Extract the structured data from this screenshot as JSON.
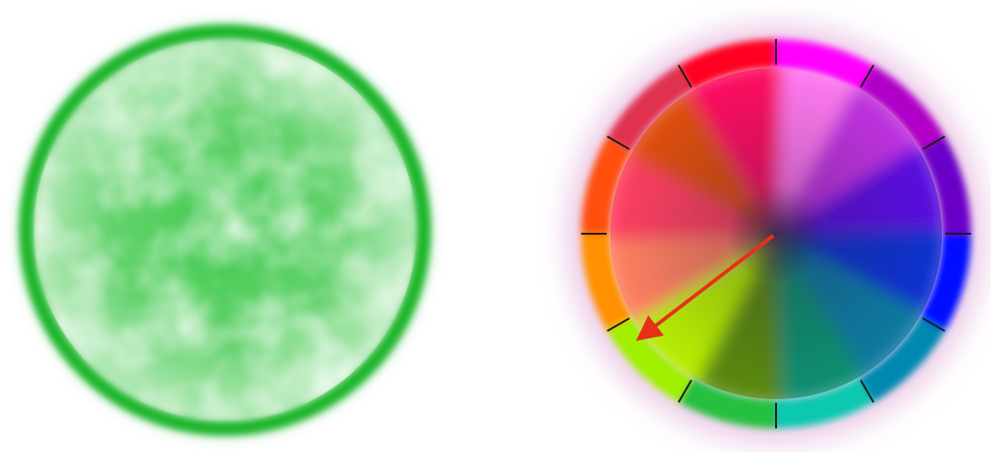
{
  "left_circle": {
    "fill_color": "#3cc84a",
    "ring_color": "#1fb52c"
  },
  "color_wheel": {
    "outer_ring_colors": [
      "#ff00ff",
      "#b000c8",
      "#6a00c8",
      "#0010ff",
      "#0088b0",
      "#10c8b0",
      "#28c040",
      "#a0f000",
      "#ff9000",
      "#ff5010",
      "#e03050",
      "#ff0020"
    ],
    "inner_wedge_colors": [
      "#ff7af0",
      "#c030e0",
      "#5a10e0",
      "#1030d0",
      "#0a7aa0",
      "#0f9070",
      "#5a8a10",
      "#b8f000",
      "#ff8060",
      "#ff4060",
      "#e05010",
      "#ff1060"
    ],
    "pointer": {
      "color": "#e83018",
      "icon": "arrow-icon"
    }
  }
}
